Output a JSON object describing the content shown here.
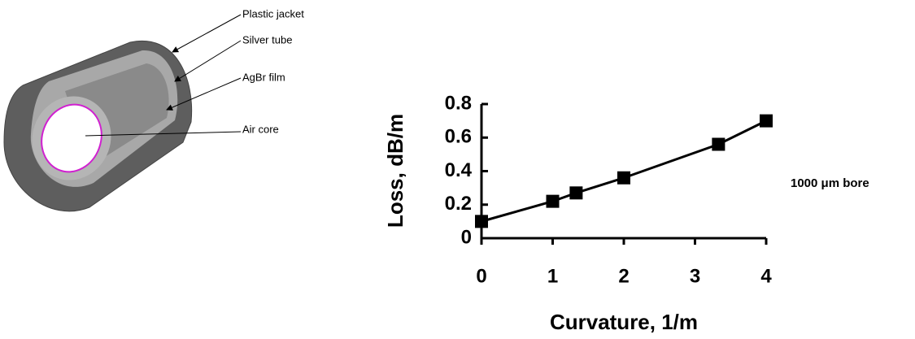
{
  "diagram": {
    "labels": [
      "Plastic jacket",
      "Silver tube",
      "AgBr film",
      "Air core"
    ]
  },
  "chart_data": {
    "type": "line",
    "x_label": "Curvature, 1/m",
    "y_label": "Loss, dB/m",
    "x": [
      0,
      1,
      1.33,
      2,
      3.33,
      4
    ],
    "series": [
      {
        "name": "1000 μm bore",
        "color": "#000000",
        "values": [
          0.1,
          0.22,
          0.27,
          0.36,
          0.56,
          0.7
        ]
      }
    ],
    "xlim": [
      0,
      4
    ],
    "xticks": [
      0,
      1,
      2,
      3,
      4
    ],
    "ylim": [
      0,
      0.8
    ],
    "yticks": [
      0,
      0.2,
      0.4,
      0.6,
      0.8
    ],
    "marker": "square",
    "grid": false
  }
}
